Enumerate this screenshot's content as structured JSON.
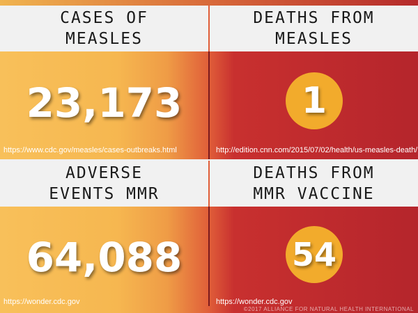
{
  "panels": [
    {
      "title": "CASES OF\nMEASLES",
      "value": "23,173",
      "source": "https://www.cdc.gov/measles/cases-outbreaks.html"
    },
    {
      "title": "DEATHS FROM\nMEASLES",
      "value": "1",
      "source": "http://edition.cnn.com/2015/07/02/health/us-measles-death/"
    },
    {
      "title": "ADVERSE\nEVENTS MMR",
      "value": "64,088",
      "source": "https://wonder.cdc.gov"
    },
    {
      "title": "DEATHS FROM\nMMR VACCINE",
      "value": "54",
      "source": "https://wonder.cdc.gov"
    }
  ],
  "copyright": "©2017 ALLIANCE FOR NATURAL HEALTH INTERNATIONAL",
  "colors": {
    "left_panel": "#f8c05a",
    "right_panel": "#b5252c",
    "circle": "#f2ab2c",
    "header_bg": "#f1f1f1"
  }
}
